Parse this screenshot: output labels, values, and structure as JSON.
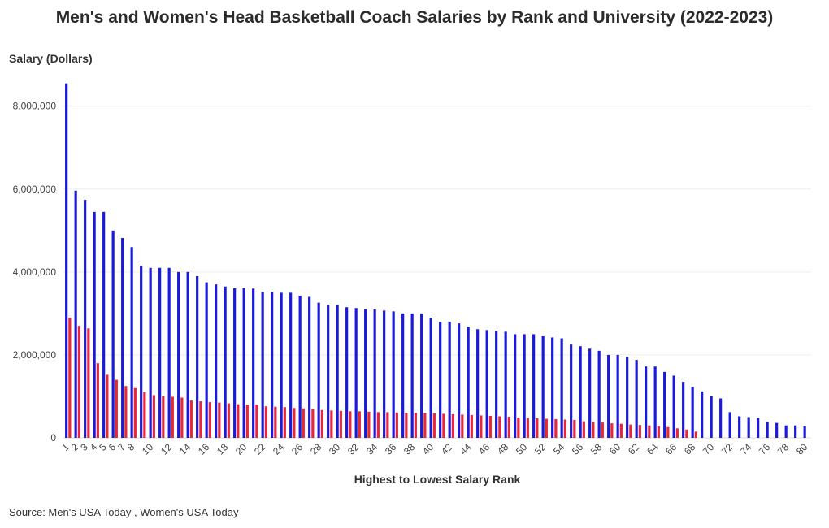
{
  "chart_data": {
    "type": "bar",
    "title": "Men's and Women's Head Basketball Coach Salaries by Rank and University (2022-2023)",
    "xlabel": "Highest to Lowest Salary Rank",
    "ylabel": "Salary (Dollars)",
    "ylim": [
      0,
      8700000
    ],
    "yticks": [
      0,
      2000000,
      4000000,
      6000000,
      8000000
    ],
    "ytick_labels": [
      "0",
      "2,000,000",
      "4,000,000",
      "6,000,000",
      "8,000,000"
    ],
    "x_tick_labels": [
      "1",
      "2",
      "3",
      "4",
      "5",
      "6",
      "7",
      "8",
      "10",
      "12",
      "14",
      "16",
      "18",
      "20",
      "22",
      "24",
      "26",
      "28",
      "30",
      "32",
      "34",
      "36",
      "38",
      "40",
      "42",
      "44",
      "46",
      "48",
      "50",
      "52",
      "54",
      "56",
      "58",
      "60",
      "62",
      "64",
      "66",
      "68",
      "70",
      "72",
      "74",
      "76",
      "78",
      "80"
    ],
    "grid": true,
    "series": [
      {
        "color": "#1a1adb",
        "x": [
          1,
          2,
          3,
          4,
          5,
          6,
          7,
          8,
          9,
          10,
          11,
          12,
          13,
          14,
          15,
          16,
          17,
          18,
          19,
          20,
          21,
          22,
          23,
          24,
          25,
          26,
          27,
          28,
          29,
          30,
          31,
          32,
          33,
          34,
          35,
          36,
          37,
          38,
          39,
          40,
          41,
          42,
          43,
          44,
          45,
          46,
          47,
          48,
          49,
          50,
          51,
          52,
          53,
          54,
          55,
          56,
          57,
          58,
          59,
          60,
          61,
          62,
          63,
          64,
          65,
          66,
          67,
          68,
          69,
          70,
          71,
          72,
          73,
          74,
          75,
          76,
          77,
          78,
          79,
          80
        ],
        "values": [
          8550000,
          5960000,
          5740000,
          5450000,
          5450000,
          5000000,
          4820000,
          4600000,
          4150000,
          4100000,
          4100000,
          4100000,
          4000000,
          4000000,
          3900000,
          3750000,
          3700000,
          3650000,
          3610000,
          3610000,
          3600000,
          3520000,
          3520000,
          3500000,
          3500000,
          3430000,
          3400000,
          3260000,
          3210000,
          3200000,
          3150000,
          3130000,
          3100000,
          3100000,
          3070000,
          3050000,
          3000000,
          3000000,
          3000000,
          2900000,
          2800000,
          2800000,
          2760000,
          2680000,
          2620000,
          2600000,
          2580000,
          2560000,
          2500000,
          2500000,
          2500000,
          2450000,
          2420000,
          2400000,
          2250000,
          2210000,
          2150000,
          2100000,
          2000000,
          2000000,
          1950000,
          1880000,
          1720000,
          1720000,
          1590000,
          1500000,
          1350000,
          1230000,
          1120000,
          1000000,
          950000,
          620000,
          520000,
          500000,
          480000,
          380000,
          360000,
          300000,
          300000,
          280000
        ]
      },
      {
        "color": "#e8283a",
        "x": [
          1,
          2,
          3,
          4,
          5,
          6,
          7,
          8,
          9,
          10,
          11,
          12,
          13,
          14,
          15,
          16,
          17,
          18,
          19,
          20,
          21,
          22,
          23,
          24,
          25,
          26,
          27,
          28,
          29,
          30,
          31,
          32,
          33,
          34,
          35,
          36,
          37,
          38,
          39,
          40,
          41,
          42,
          43,
          44,
          45,
          46,
          47,
          48,
          49,
          50,
          51,
          52,
          53,
          54,
          55,
          56,
          57,
          58,
          59,
          60,
          61,
          62,
          63,
          64,
          65,
          66,
          67,
          68
        ],
        "values": [
          2900000,
          2700000,
          2640000,
          1800000,
          1520000,
          1400000,
          1250000,
          1200000,
          1100000,
          1030000,
          1000000,
          990000,
          970000,
          900000,
          880000,
          860000,
          850000,
          830000,
          810000,
          800000,
          800000,
          760000,
          750000,
          740000,
          720000,
          710000,
          690000,
          670000,
          660000,
          650000,
          640000,
          640000,
          630000,
          620000,
          620000,
          610000,
          600000,
          600000,
          600000,
          590000,
          580000,
          570000,
          560000,
          550000,
          540000,
          530000,
          520000,
          510000,
          490000,
          480000,
          470000,
          460000,
          450000,
          440000,
          430000,
          400000,
          380000,
          370000,
          350000,
          340000,
          320000,
          310000,
          300000,
          280000,
          260000,
          230000,
          200000,
          150000
        ]
      }
    ]
  },
  "source": {
    "prefix": "Source: ",
    "link1": "Men's USA Today ",
    "separator": ", ",
    "link2": "Women's USA Today"
  }
}
